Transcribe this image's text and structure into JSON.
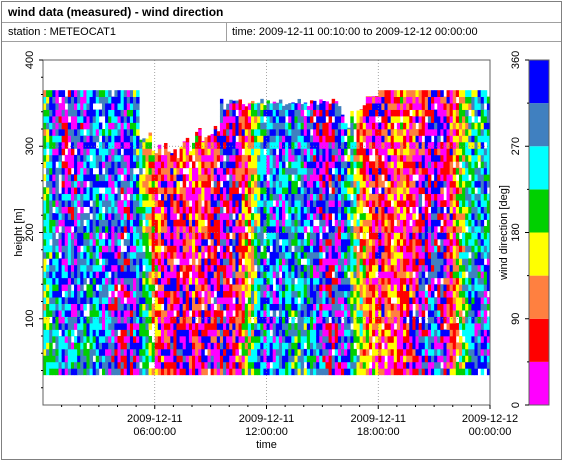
{
  "window": {
    "title": "wind data (measured) - wind direction",
    "station_text": "station : METEOCAT1",
    "time_text": "time: 2009-12-11 00:10:00 to 2009-12-12 00:00:00"
  },
  "chart_data": {
    "type": "heatmap",
    "xlabel": "time",
    "ylabel": "height [m]",
    "colorbar_label": "wind direction [deg]",
    "x_ticks": [
      {
        "hours": 6,
        "line1": "2009-12-11",
        "line2": "06:00:00"
      },
      {
        "hours": 12,
        "line1": "2009-12-11",
        "line2": "12:00:00"
      },
      {
        "hours": 18,
        "line1": "2009-12-11",
        "line2": "18:00:00"
      },
      {
        "hours": 24,
        "line1": "2009-12-12",
        "line2": "00:00:00"
      }
    ],
    "xlim_hours": [
      0,
      24
    ],
    "y_ticks": [
      100,
      200,
      300,
      400
    ],
    "ylim": [
      0,
      400
    ],
    "colorbar_ticks": [
      0,
      90,
      180,
      270,
      360
    ],
    "colorbar_range": [
      0,
      360
    ],
    "color_bins": [
      {
        "from": 0,
        "to": 45,
        "color": "#ff00ff"
      },
      {
        "from": 45,
        "to": 90,
        "color": "#ff0000"
      },
      {
        "from": 90,
        "to": 135,
        "color": "#ff8040"
      },
      {
        "from": 135,
        "to": 180,
        "color": "#ffff00"
      },
      {
        "from": 180,
        "to": 225,
        "color": "#00d000"
      },
      {
        "from": 225,
        "to": 270,
        "color": "#00ffff"
      },
      {
        "from": 270,
        "to": 315,
        "color": "#4080c0"
      },
      {
        "from": 315,
        "to": 360,
        "color": "#0000ff"
      }
    ],
    "height_range_m": [
      35,
      365
    ],
    "time_step_min": 10,
    "grid": true
  }
}
